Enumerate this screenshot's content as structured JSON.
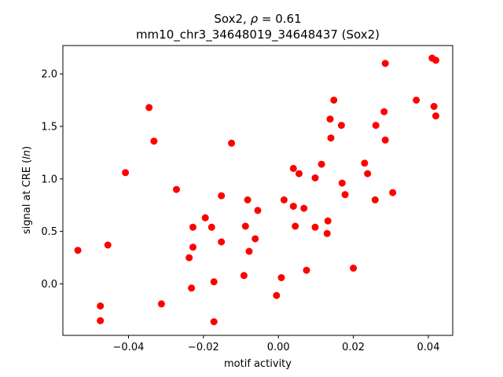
{
  "chart_data": {
    "type": "scatter",
    "title_line1_prefix": "Sox2, ",
    "title_line1_rho": "ρ",
    "title_line1_suffix": " = 0.61",
    "title_line2": "mm10_chr3_34648019_34648437 (Sox2)",
    "xlabel": "motif activity",
    "ylabel_prefix": "signal at CRE (",
    "ylabel_italic": "ln",
    "ylabel_suffix": ")",
    "xlim": [
      -0.0575,
      0.0465
    ],
    "ylim": [
      -0.49,
      2.27
    ],
    "xticks": [
      -0.04,
      -0.02,
      0.0,
      0.02,
      0.04
    ],
    "xtick_labels": [
      "−0.04",
      "−0.02",
      "0.00",
      "0.02",
      "0.04"
    ],
    "yticks": [
      0.0,
      0.5,
      1.0,
      1.5,
      2.0
    ],
    "ytick_labels": [
      "0.0",
      "0.5",
      "1.0",
      "1.5",
      "2.0"
    ],
    "marker_color": "#ff0000",
    "grid": false,
    "points": [
      {
        "x": -0.0535,
        "y": 0.32
      },
      {
        "x": -0.0475,
        "y": -0.21
      },
      {
        "x": -0.0475,
        "y": -0.35
      },
      {
        "x": -0.0455,
        "y": 0.37
      },
      {
        "x": -0.0408,
        "y": 1.06
      },
      {
        "x": -0.0345,
        "y": 1.68
      },
      {
        "x": -0.0332,
        "y": 1.36
      },
      {
        "x": -0.0312,
        "y": -0.19
      },
      {
        "x": -0.0272,
        "y": 0.9
      },
      {
        "x": -0.0238,
        "y": 0.25
      },
      {
        "x": -0.0232,
        "y": -0.04
      },
      {
        "x": -0.0228,
        "y": 0.35
      },
      {
        "x": -0.0228,
        "y": 0.54
      },
      {
        "x": -0.0195,
        "y": 0.63
      },
      {
        "x": -0.0178,
        "y": 0.54
      },
      {
        "x": -0.0172,
        "y": 0.02
      },
      {
        "x": -0.0172,
        "y": -0.36
      },
      {
        "x": -0.0152,
        "y": 0.84
      },
      {
        "x": -0.0152,
        "y": 0.4
      },
      {
        "x": -0.0125,
        "y": 1.34
      },
      {
        "x": -0.0092,
        "y": 0.08
      },
      {
        "x": -0.0088,
        "y": 0.55
      },
      {
        "x": -0.0082,
        "y": 0.8
      },
      {
        "x": -0.0078,
        "y": 0.31
      },
      {
        "x": -0.0062,
        "y": 0.43
      },
      {
        "x": -0.0055,
        "y": 0.7
      },
      {
        "x": -0.0005,
        "y": -0.11
      },
      {
        "x": 0.0008,
        "y": 0.06
      },
      {
        "x": 0.0015,
        "y": 0.8
      },
      {
        "x": 0.004,
        "y": 1.1
      },
      {
        "x": 0.004,
        "y": 0.74
      },
      {
        "x": 0.0045,
        "y": 0.55
      },
      {
        "x": 0.0055,
        "y": 1.05
      },
      {
        "x": 0.0068,
        "y": 0.72
      },
      {
        "x": 0.0075,
        "y": 0.13
      },
      {
        "x": 0.0098,
        "y": 1.01
      },
      {
        "x": 0.0098,
        "y": 0.54
      },
      {
        "x": 0.0115,
        "y": 1.14
      },
      {
        "x": 0.013,
        "y": 0.48
      },
      {
        "x": 0.0132,
        "y": 0.6
      },
      {
        "x": 0.0138,
        "y": 1.57
      },
      {
        "x": 0.014,
        "y": 1.39
      },
      {
        "x": 0.0148,
        "y": 1.75
      },
      {
        "x": 0.0168,
        "y": 1.51
      },
      {
        "x": 0.017,
        "y": 0.96
      },
      {
        "x": 0.0178,
        "y": 0.85
      },
      {
        "x": 0.02,
        "y": 0.15
      },
      {
        "x": 0.023,
        "y": 1.15
      },
      {
        "x": 0.0238,
        "y": 1.05
      },
      {
        "x": 0.0258,
        "y": 0.8
      },
      {
        "x": 0.026,
        "y": 1.51
      },
      {
        "x": 0.0282,
        "y": 1.64
      },
      {
        "x": 0.0285,
        "y": 2.1
      },
      {
        "x": 0.0285,
        "y": 1.37
      },
      {
        "x": 0.0305,
        "y": 0.87
      },
      {
        "x": 0.0368,
        "y": 1.75
      },
      {
        "x": 0.041,
        "y": 2.15
      },
      {
        "x": 0.0415,
        "y": 1.69
      },
      {
        "x": 0.042,
        "y": 2.13
      },
      {
        "x": 0.042,
        "y": 1.6
      }
    ]
  }
}
